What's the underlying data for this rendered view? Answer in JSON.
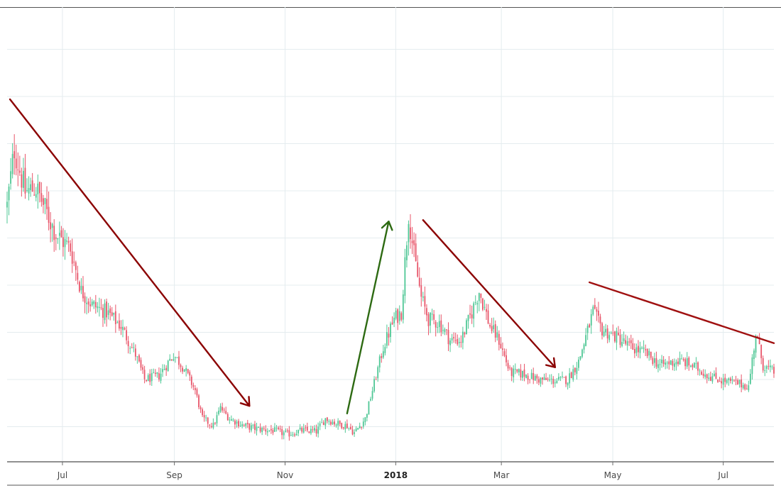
{
  "chart_data": {
    "type": "candlestick",
    "title": "",
    "xlabel": "",
    "ylabel": "",
    "x_unit": "days since start of visible range",
    "xlim": [
      0,
      424
    ],
    "ylim": [
      0.26,
      9.9
    ],
    "grid": true,
    "y_grid_levels": [
      1,
      2,
      3,
      4,
      5,
      6,
      7,
      8,
      9
    ],
    "x_ticks": [
      {
        "label": "Jul",
        "day": 30.6,
        "bold": false
      },
      {
        "label": "Sep",
        "day": 92.5,
        "bold": false
      },
      {
        "label": "Nov",
        "day": 153.7,
        "bold": false
      },
      {
        "label": "2018",
        "day": 214.9,
        "bold": true
      },
      {
        "label": "Mar",
        "day": 273.3,
        "bold": false
      },
      {
        "label": "May",
        "day": 334.9,
        "bold": false
      },
      {
        "label": "Jul",
        "day": 396,
        "bold": false
      }
    ],
    "close_path": {
      "days": [
        0,
        4,
        10,
        16,
        22,
        27,
        35,
        41,
        47,
        55,
        63,
        71,
        76,
        84,
        92,
        98,
        104,
        108,
        114,
        118,
        123,
        131,
        139,
        147,
        155,
        163,
        171,
        176,
        182,
        188,
        192,
        198,
        202,
        208,
        214,
        218,
        222,
        225,
        229,
        233,
        239,
        245,
        251,
        257,
        261,
        267,
        272,
        278,
        286,
        294,
        302,
        310,
        316,
        324,
        329,
        337,
        345,
        353,
        361,
        369,
        374,
        382,
        388,
        396,
        404,
        410,
        414,
        418,
        424
      ],
      "values": [
        5.68,
        6.89,
        5.98,
        6.06,
        5.53,
        5.08,
        4.78,
        3.88,
        3.58,
        3.43,
        3.13,
        2.53,
        2.0,
        2.08,
        2.53,
        2.23,
        1.77,
        1.17,
        1.02,
        1.4,
        1.17,
        1.02,
        0.95,
        0.92,
        0.84,
        0.92,
        0.9,
        1.17,
        1.07,
        1.02,
        0.87,
        1.17,
        1.77,
        2.68,
        3.28,
        3.43,
        5.53,
        4.63,
        3.73,
        3.28,
        3.2,
        2.83,
        2.83,
        3.43,
        3.88,
        3.13,
        2.83,
        2.15,
        2.11,
        2.0,
        1.97,
        2.0,
        2.38,
        3.43,
        3.05,
        2.9,
        2.68,
        2.56,
        2.3,
        2.38,
        2.38,
        2.23,
        2.08,
        1.97,
        1.92,
        1.85,
        2.98,
        2.3,
        2.15
      ]
    },
    "annotations": [
      {
        "type": "arrow",
        "color": "#8b0000",
        "from": [
          1.6,
          7.94
        ],
        "to": [
          134,
          1.44
        ]
      },
      {
        "type": "arrow",
        "color": "#2d6a12",
        "from": [
          188,
          1.28
        ],
        "to": [
          211,
          5.35
        ]
      },
      {
        "type": "arrow",
        "color": "#8b0000",
        "from": [
          230,
          5.38
        ],
        "to": [
          303,
          2.26
        ]
      },
      {
        "type": "line",
        "color": "#a01010",
        "from": [
          322,
          4.06
        ],
        "to": [
          424,
          2.77
        ]
      }
    ],
    "colors": {
      "up": "#4fc795",
      "down": "#e8566a",
      "grid": "#e4ecef",
      "axis": "#6b6b6b"
    }
  }
}
